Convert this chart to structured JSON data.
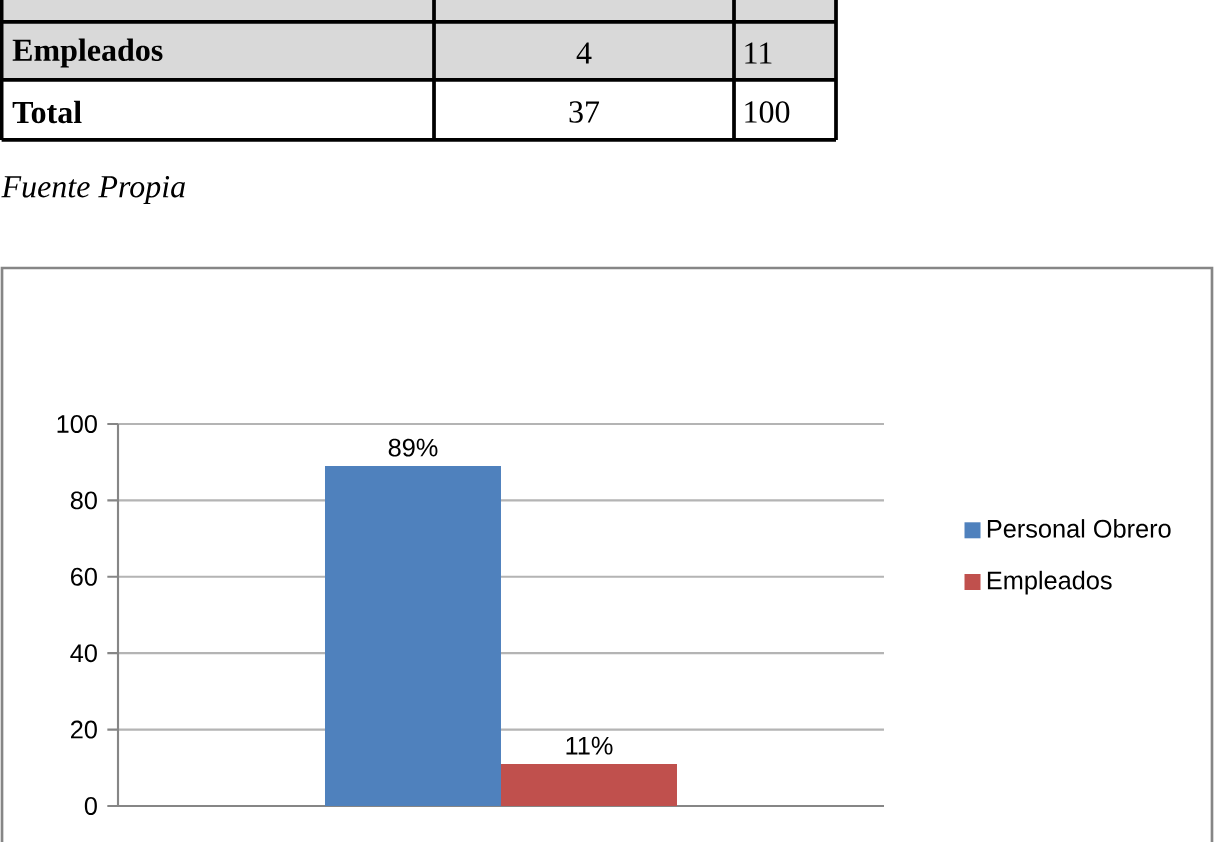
{
  "chart_data": {
    "type": "bar",
    "categories": [
      null
    ],
    "series": [
      {
        "name": "Personal Obrero",
        "color": "#4f81bd",
        "values": [
          89
        ],
        "value_labels": [
          "89%"
        ]
      },
      {
        "name": "Empleados",
        "color": "#c0504d",
        "values": [
          11
        ],
        "value_labels": [
          "11%"
        ]
      }
    ],
    "ylim": [
      0,
      100
    ],
    "yticks": [
      0,
      20,
      40,
      60,
      80,
      100
    ],
    "grid": "y",
    "legend": "right",
    "annotations": [
      "Empleados",
      "4",
      "11",
      "Total",
      "37",
      "100",
      "Fuente Propia"
    ]
  }
}
